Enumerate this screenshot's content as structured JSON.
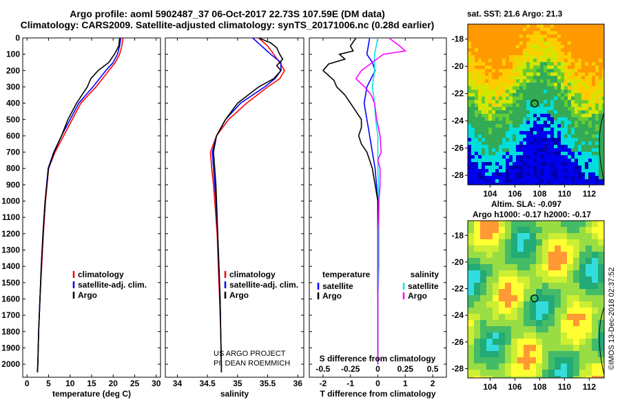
{
  "header": {
    "line1": "Argo profile: aoml 5902487_37 06-Oct-2017 22.73S 107.59E (DM data)",
    "line2": "Climatology: CARS2009. Satellite-adjusted climatology: synTS_20171006.nc (0.28d earlier)"
  },
  "credit": {
    "project": "US ARGO PROJECT",
    "pi": "PI: DEAN ROEMMICH"
  },
  "stamp": "©IMOS 13-Dec-2018 02:37:52",
  "colors": {
    "climatology": "#ff0000",
    "satellite": "#0000ff",
    "argo": "#000000",
    "salinity_sat": "#00e5e5",
    "salinity_argo": "#ff00ff"
  },
  "chart_data": [
    {
      "type": "line",
      "panel": "temperature",
      "xlabel": "temperature (deg C)",
      "ylabel": "",
      "xlim": [
        -1,
        31
      ],
      "ylim": [
        2080,
        0
      ],
      "xticks": [
        "0",
        "5",
        "10",
        "15",
        "20",
        "25",
        "30"
      ],
      "yticks": [
        "0",
        "100",
        "200",
        "300",
        "400",
        "500",
        "600",
        "700",
        "800",
        "900",
        "1000",
        "1100",
        "1200",
        "1300",
        "1400",
        "1500",
        "1600",
        "1700",
        "1800",
        "1900",
        "2000"
      ],
      "legend": [
        "climatology",
        "satellite-adj. clim.",
        "Argo"
      ],
      "series": [
        {
          "name": "climatology",
          "depth": [
            0,
            50,
            100,
            150,
            200,
            300,
            400,
            500,
            600,
            700,
            800,
            1000,
            1200,
            1400,
            1600,
            1800,
            2000,
            2050
          ],
          "values": [
            22.3,
            22.0,
            21.5,
            20.5,
            19.0,
            16.0,
            12.5,
            10.5,
            8.5,
            6.5,
            5.0,
            4.3,
            3.8,
            3.4,
            3.0,
            2.7,
            2.5,
            2.4
          ]
        },
        {
          "name": "satellite-adj. clim.",
          "depth": [
            0,
            50,
            100,
            150,
            200,
            300,
            400,
            500,
            600,
            700,
            800,
            1000,
            1200,
            1400,
            1600,
            1800,
            2000,
            2050
          ],
          "values": [
            21.8,
            21.5,
            21.0,
            20.0,
            18.3,
            15.3,
            12.0,
            10.0,
            8.0,
            6.2,
            4.9,
            4.2,
            3.7,
            3.3,
            3.0,
            2.7,
            2.5,
            2.4
          ]
        },
        {
          "name": "Argo",
          "depth": [
            0,
            50,
            100,
            150,
            200,
            250,
            300,
            400,
            500,
            600,
            700,
            800,
            1000,
            1200,
            1400,
            1600,
            1800,
            2000,
            2050
          ],
          "values": [
            21.5,
            21.3,
            20.3,
            19.0,
            16.5,
            14.8,
            14.0,
            11.5,
            9.5,
            8.0,
            6.3,
            5.0,
            4.2,
            3.7,
            3.3,
            3.0,
            2.7,
            2.5,
            2.4
          ]
        }
      ]
    },
    {
      "type": "line",
      "panel": "salinity",
      "xlabel": "salinity",
      "xlim": [
        33.8,
        36.1
      ],
      "ylim": [
        2080,
        0
      ],
      "xticks": [
        "34",
        "34.5",
        "35",
        "35.5",
        "36"
      ],
      "legend": [
        "climatology",
        "satellite-adj. clim.",
        "Argo"
      ],
      "series": [
        {
          "name": "climatology",
          "depth": [
            0,
            50,
            100,
            150,
            200,
            250,
            300,
            400,
            500,
            600,
            700,
            800,
            900,
            1000,
            1200,
            1400,
            1600,
            1800,
            2000,
            2050
          ],
          "values": [
            35.35,
            35.5,
            35.6,
            35.7,
            35.78,
            35.7,
            35.5,
            35.15,
            34.85,
            34.65,
            34.55,
            34.57,
            34.6,
            34.62,
            34.66,
            34.68,
            34.7,
            34.72,
            34.73,
            34.73
          ]
        },
        {
          "name": "satellite-adj. clim.",
          "depth": [
            0,
            50,
            100,
            150,
            200,
            250,
            300,
            400,
            500,
            600,
            700,
            800,
            900,
            1000,
            1200,
            1400,
            1600,
            1800,
            2000,
            2050
          ],
          "values": [
            35.25,
            35.4,
            35.55,
            35.72,
            35.72,
            35.62,
            35.45,
            35.05,
            34.8,
            34.65,
            34.58,
            34.6,
            34.62,
            34.64,
            34.67,
            34.69,
            34.71,
            34.72,
            34.73,
            34.73
          ]
        },
        {
          "name": "Argo",
          "depth": [
            0,
            30,
            60,
            100,
            130,
            170,
            200,
            250,
            300,
            400,
            500,
            600,
            700,
            800,
            900,
            1000,
            1200,
            1400,
            1600,
            1800,
            2000,
            2050
          ],
          "values": [
            35.35,
            35.55,
            35.65,
            35.7,
            35.75,
            35.65,
            35.72,
            35.6,
            35.35,
            35.0,
            34.8,
            34.65,
            34.6,
            34.62,
            34.64,
            34.65,
            34.67,
            34.69,
            34.71,
            34.72,
            34.73,
            34.73
          ]
        }
      ]
    },
    {
      "type": "line",
      "panel": "difference",
      "xlabel": "T difference from climatology",
      "xlim": [
        -2.5,
        2.5
      ],
      "ylim": [
        2080,
        0
      ],
      "xticks": [
        "-2",
        "-1",
        "0",
        "1",
        "2"
      ],
      "secondary_xlabel": "S difference from climatology",
      "secondary_xticks": [
        "-0.5",
        "-0.25",
        "0",
        "0.25",
        "0.5"
      ],
      "legend_left_title": "temperature",
      "legend_right_title": "salinity",
      "legend_left": [
        "satellite",
        "Argo"
      ],
      "legend_right": [
        "satellite",
        "Argo"
      ],
      "series": [
        {
          "name": "T satellite",
          "depth": [
            0,
            50,
            100,
            150,
            200,
            300,
            400,
            500,
            600,
            700,
            800,
            900,
            1000,
            1200,
            1400,
            1600,
            1800,
            2000
          ],
          "values": [
            -0.3,
            -0.35,
            -0.4,
            -0.2,
            -0.1,
            -0.4,
            -0.5,
            -0.4,
            -0.3,
            -0.2,
            -0.1,
            -0.05,
            0.0,
            0.0,
            0.0,
            0.0,
            0.0,
            0.0
          ]
        },
        {
          "name": "T Argo",
          "depth": [
            0,
            50,
            80,
            100,
            130,
            160,
            200,
            230,
            260,
            300,
            350,
            400,
            450,
            500,
            550,
            600,
            650,
            700,
            750,
            800,
            900,
            1000,
            1200,
            1400,
            1600,
            1800,
            2000
          ],
          "values": [
            -0.8,
            -1.0,
            -0.9,
            -1.4,
            -1.2,
            -1.8,
            -2.0,
            -1.8,
            -1.6,
            -1.5,
            -1.2,
            -1.0,
            -0.8,
            -0.6,
            -0.6,
            -0.7,
            -0.6,
            -0.4,
            -0.3,
            -0.2,
            -0.1,
            0.0,
            0.0,
            0.0,
            0.0,
            0.0,
            0.0
          ]
        },
        {
          "name": "S satellite",
          "depth": [
            0,
            100,
            200,
            300,
            400,
            500,
            600,
            700,
            800,
            1000,
            1200,
            1400,
            1600,
            1800,
            2000
          ],
          "values": [
            0.0,
            -0.03,
            -0.03,
            -0.05,
            -0.03,
            -0.02,
            0.0,
            0.0,
            0.0,
            0.01,
            0.01,
            0.01,
            0.0,
            0.0,
            0.0
          ]
        },
        {
          "name": "S Argo",
          "depth": [
            0,
            50,
            80,
            100,
            150,
            200,
            250,
            300,
            350,
            400,
            500,
            600,
            700,
            750,
            800,
            900,
            1000,
            1200,
            1400,
            1600,
            1800,
            2000
          ],
          "values": [
            0.1,
            0.2,
            0.25,
            0.05,
            -0.05,
            -0.15,
            -0.2,
            -0.12,
            -0.06,
            -0.03,
            -0.01,
            0.02,
            0.03,
            0.0,
            0.02,
            0.02,
            0.01,
            0.0,
            0.0,
            0.0,
            0.0,
            0.0
          ]
        }
      ]
    },
    {
      "type": "heatmap",
      "panel": "sst_map",
      "title": "sat. SST: 21.6 Argo: 21.3",
      "xticks": [
        "104",
        "106",
        "108",
        "110",
        "112"
      ],
      "yticks": [
        "-18",
        "-20",
        "-22",
        "-24",
        "-26",
        "-28"
      ],
      "xlim": [
        102.2,
        113.2
      ],
      "ylim": [
        -28.7,
        -16.9
      ],
      "float_position": {
        "lon": 107.59,
        "lat": -22.73
      }
    },
    {
      "type": "heatmap",
      "panel": "sla_map",
      "title_line1": "Altim. SLA: -0.097",
      "title_line2": "Argo h1000: -0.17 h2000: -0.17",
      "xticks": [
        "104",
        "106",
        "108",
        "110",
        "112"
      ],
      "yticks": [
        "-18",
        "-20",
        "-22",
        "-24",
        "-26",
        "-28"
      ],
      "xlim": [
        102.2,
        113.2
      ],
      "ylim": [
        -28.7,
        -16.9
      ],
      "float_position": {
        "lon": 107.59,
        "lat": -22.73
      }
    }
  ]
}
